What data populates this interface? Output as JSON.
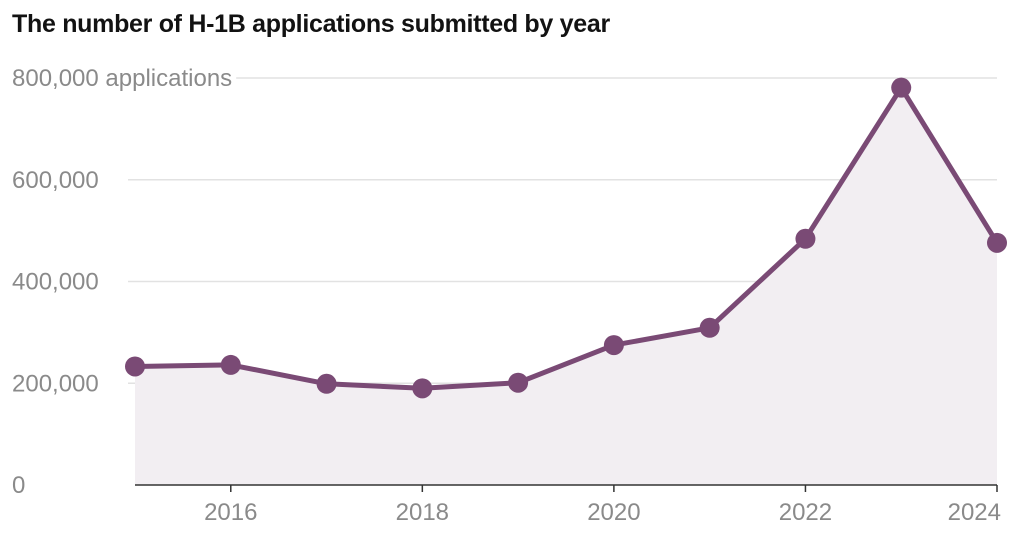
{
  "chart_data": {
    "type": "area",
    "title": "The number of H-1B applications submitted by year",
    "x": [
      2015,
      2016,
      2017,
      2018,
      2019,
      2020,
      2021,
      2022,
      2023,
      2024
    ],
    "series": [
      {
        "values": [
          233000,
          236000,
          199000,
          190000,
          201000,
          275000,
          309000,
          484000,
          781000,
          476000
        ]
      }
    ],
    "xlim": [
      2015,
      2024
    ],
    "ylim": [
      0,
      800000
    ],
    "xticks": [
      2016,
      2018,
      2020,
      2022,
      2024
    ],
    "yticks": [
      0,
      200000,
      400000,
      600000,
      800000
    ],
    "ytick_labels": [
      "0",
      "200,000",
      "400,000",
      "600,000",
      "800,000 applications"
    ],
    "grid": "horizontal",
    "colors": {
      "line": "#7a4a75",
      "fill": "#f2eef2",
      "grid": "#e2e2e2",
      "axis": "#333333",
      "tick_text": "#8a8a8a"
    }
  }
}
